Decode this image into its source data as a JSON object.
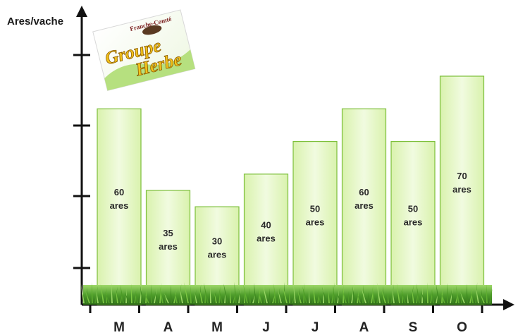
{
  "chart_data": {
    "type": "bar",
    "ylabel": "Ares/vache",
    "categories": [
      "M",
      "A",
      "M",
      "J",
      "J",
      "A",
      "S",
      "O"
    ],
    "values": [
      60,
      35,
      30,
      40,
      50,
      60,
      50,
      70
    ],
    "value_labels": [
      [
        "60",
        "ares"
      ],
      [
        "35",
        "ares"
      ],
      [
        "30",
        "ares"
      ],
      [
        "40",
        "ares"
      ],
      [
        "50",
        "ares"
      ],
      [
        "60",
        "ares"
      ],
      [
        "50",
        "ares"
      ],
      [
        "70",
        "ares"
      ]
    ],
    "ylim": [
      0,
      80
    ],
    "grid": false,
    "bar_color": "#e8f7c8",
    "bar_border_color": "#7cbf3a"
  },
  "logo": {
    "top_text": "Franche-Comté",
    "word1": "Groupe",
    "word2": "Herbe"
  }
}
